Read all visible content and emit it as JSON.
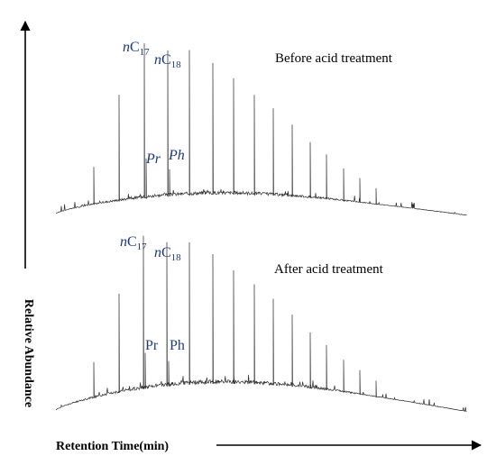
{
  "chart_data": {
    "type": "line",
    "xlabel": "Retention Time(min)",
    "ylabel": "Relative Abundance",
    "grid": false,
    "panels": [
      {
        "title": "Before acid treatment",
        "peak_labels": {
          "c17_prefix": "n",
          "c17_base": "C",
          "c17_sub": "17",
          "c18_prefix": "n",
          "c18_base": "C",
          "c18_sub": "18",
          "pr": "Pr",
          "ph": "Ph"
        },
        "label_italic_isoprenoids": true,
        "peaks": [
          {
            "x": 104,
            "h": 42
          },
          {
            "x": 132,
            "h": 118
          },
          {
            "x": 160,
            "h": 172
          },
          {
            "x": 162,
            "h": 44
          },
          {
            "x": 186,
            "h": 162
          },
          {
            "x": 188,
            "h": 30
          },
          {
            "x": 210,
            "h": 161
          },
          {
            "x": 236,
            "h": 146
          },
          {
            "x": 259,
            "h": 129
          },
          {
            "x": 282,
            "h": 111
          },
          {
            "x": 303,
            "h": 97
          },
          {
            "x": 324,
            "h": 80
          },
          {
            "x": 344,
            "h": 62
          },
          {
            "x": 362,
            "h": 50
          },
          {
            "x": 381,
            "h": 36
          },
          {
            "x": 399,
            "h": 27
          },
          {
            "x": 417,
            "h": 18
          }
        ]
      },
      {
        "title": "After acid treatment",
        "peak_labels": {
          "c17_prefix": "n",
          "c17_base": "C",
          "c17_sub": "17",
          "c18_prefix": "n",
          "c18_base": "C",
          "c18_sub": "18",
          "pr": "Pr",
          "ph": "Ph"
        },
        "label_italic_isoprenoids": false,
        "peaks": [
          {
            "x": 104,
            "h": 40
          },
          {
            "x": 132,
            "h": 110
          },
          {
            "x": 159,
            "h": 170
          },
          {
            "x": 161,
            "h": 40
          },
          {
            "x": 185,
            "h": 160
          },
          {
            "x": 187,
            "h": 28
          },
          {
            "x": 210,
            "h": 158
          },
          {
            "x": 236,
            "h": 144
          },
          {
            "x": 259,
            "h": 126
          },
          {
            "x": 282,
            "h": 111
          },
          {
            "x": 303,
            "h": 96
          },
          {
            "x": 324,
            "h": 80
          },
          {
            "x": 344,
            "h": 62
          },
          {
            "x": 362,
            "h": 50
          },
          {
            "x": 381,
            "h": 36
          },
          {
            "x": 399,
            "h": 27
          },
          {
            "x": 417,
            "h": 18
          }
        ]
      }
    ]
  }
}
